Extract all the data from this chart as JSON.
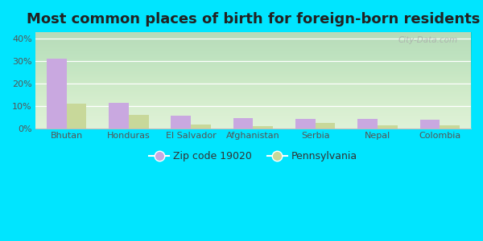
{
  "title": "Most common places of birth for foreign-born residents",
  "categories": [
    "Bhutan",
    "Honduras",
    "El Salvador",
    "Afghanistan",
    "Serbia",
    "Nepal",
    "Colombia"
  ],
  "zip_values": [
    31,
    11.5,
    5.5,
    4.5,
    4.2,
    4.0,
    3.8
  ],
  "state_values": [
    11,
    6,
    1.5,
    1.0,
    2.5,
    1.2,
    1.3
  ],
  "zip_color": "#c9a8e0",
  "state_color": "#c8d89a",
  "background_outer": "#00e5ff",
  "title_fontsize": 13,
  "ylabel_values": [
    0,
    10,
    20,
    30,
    40
  ],
  "ylim": [
    0,
    43
  ],
  "legend_zip_label": "Zip code 19020",
  "legend_state_label": "Pennsylvania",
  "watermark": "City-Data.com",
  "bar_width": 0.32
}
